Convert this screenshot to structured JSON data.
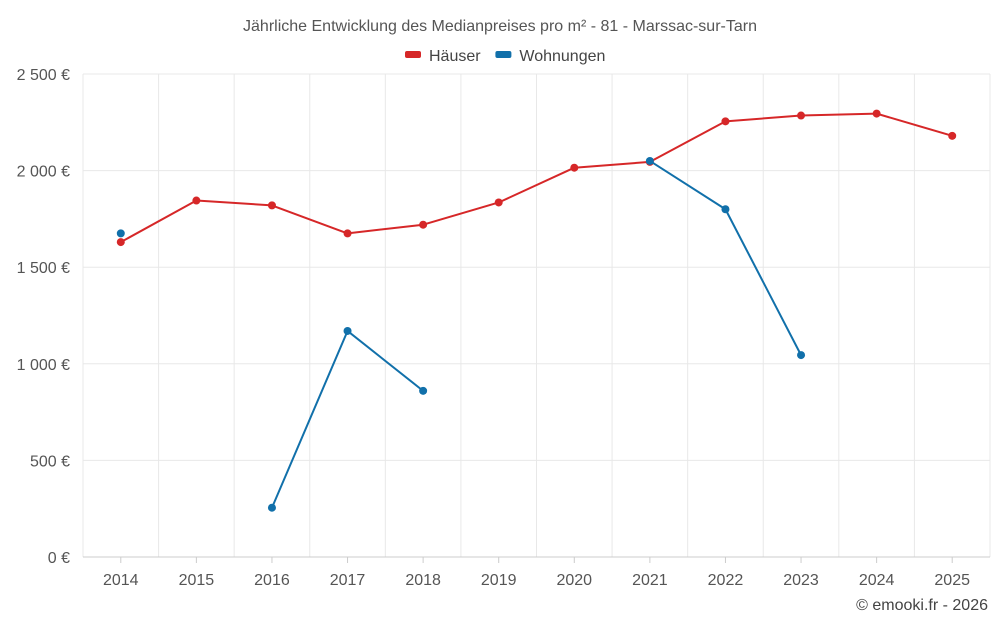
{
  "chart_data": {
    "type": "line",
    "title": "Jährliche Entwicklung des Medianpreises pro m² - 81 - Marssac-sur-Tarn",
    "categories": [
      "2014",
      "2015",
      "2016",
      "2017",
      "2018",
      "2019",
      "2020",
      "2021",
      "2022",
      "2023",
      "2024",
      "2025"
    ],
    "series": [
      {
        "name": "Häuser",
        "color": "#d62728",
        "values": [
          1630,
          1845,
          1820,
          1675,
          1720,
          1835,
          2015,
          2045,
          2255,
          2285,
          2295,
          2180
        ]
      },
      {
        "name": "Wohnungen",
        "color": "#1170aa",
        "values": [
          1675,
          null,
          255,
          1170,
          860,
          null,
          null,
          2050,
          1800,
          1045,
          null,
          null
        ]
      }
    ],
    "ylim": [
      0,
      2500
    ],
    "yticks": [
      0,
      500,
      1000,
      1500,
      2000,
      2500
    ],
    "ytick_labels": [
      "0 €",
      "500 €",
      "1 000 €",
      "1 500 €",
      "2 000 €",
      "2 500 €"
    ],
    "xlabel": "",
    "ylabel": "",
    "grid": true,
    "legend_position": "top-center"
  },
  "credit": "© emooki.fr - 2026"
}
